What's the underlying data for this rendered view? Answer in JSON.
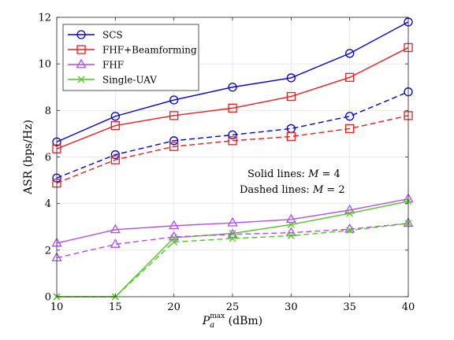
{
  "chart_data": {
    "type": "line",
    "xlabel_main": "P",
    "xlabel_sub": "a",
    "xlabel_sup": "max",
    "xlabel_unit": " (dBm)",
    "ylabel": "ASR (bps/Hz)",
    "x": [
      10,
      15,
      20,
      25,
      30,
      35,
      40
    ],
    "xlim": [
      10,
      40
    ],
    "ylim": [
      0,
      12
    ],
    "xticks": [
      "10",
      "15",
      "20",
      "25",
      "30",
      "35",
      "40"
    ],
    "yticks": [
      "0",
      "2",
      "4",
      "6",
      "8",
      "10",
      "12"
    ],
    "grid": true,
    "legend_position": "top-left",
    "annotation": {
      "line1_prefix": "Solid lines: ",
      "line1_var": "M",
      "line1_suffix": " = 4",
      "line2_prefix": "Dashed lines: ",
      "line2_var": "M",
      "line2_suffix": " = 2"
    },
    "series": [
      {
        "name": "SCS",
        "color": "#0000e0",
        "marker": "circle",
        "style": "solid",
        "values": [
          6.65,
          7.75,
          8.45,
          9.0,
          9.4,
          10.45,
          11.8
        ]
      },
      {
        "name": "FHF+Beamforming",
        "color": "#ee1c1c",
        "marker": "square",
        "style": "solid",
        "values": [
          6.35,
          7.35,
          7.78,
          8.1,
          8.6,
          9.42,
          10.7
        ]
      },
      {
        "name": "FHF",
        "color": "#b44cf0",
        "marker": "triangle",
        "style": "solid",
        "values": [
          2.3,
          2.88,
          3.05,
          3.17,
          3.32,
          3.72,
          4.2
        ]
      },
      {
        "name": "Single-UAV",
        "color": "#4ec81e",
        "marker": "x",
        "style": "solid",
        "values": [
          0.0,
          0.0,
          2.53,
          2.72,
          3.1,
          3.58,
          4.1
        ]
      },
      {
        "name": "",
        "color": "#0000e0",
        "marker": "circle",
        "style": "dashed",
        "values": [
          5.1,
          6.1,
          6.7,
          6.95,
          7.22,
          7.75,
          8.8
        ]
      },
      {
        "name": "",
        "color": "#ee1c1c",
        "marker": "square",
        "style": "dashed",
        "values": [
          4.88,
          5.88,
          6.45,
          6.7,
          6.88,
          7.22,
          7.78
        ]
      },
      {
        "name": "",
        "color": "#b44cf0",
        "marker": "triangle",
        "style": "dashed",
        "values": [
          1.67,
          2.25,
          2.57,
          2.68,
          2.75,
          2.9,
          3.15
        ]
      },
      {
        "name": "",
        "color": "#4ec81e",
        "marker": "x",
        "style": "dashed",
        "values": [
          0.0,
          0.0,
          2.35,
          2.5,
          2.62,
          2.85,
          3.15
        ]
      }
    ]
  }
}
